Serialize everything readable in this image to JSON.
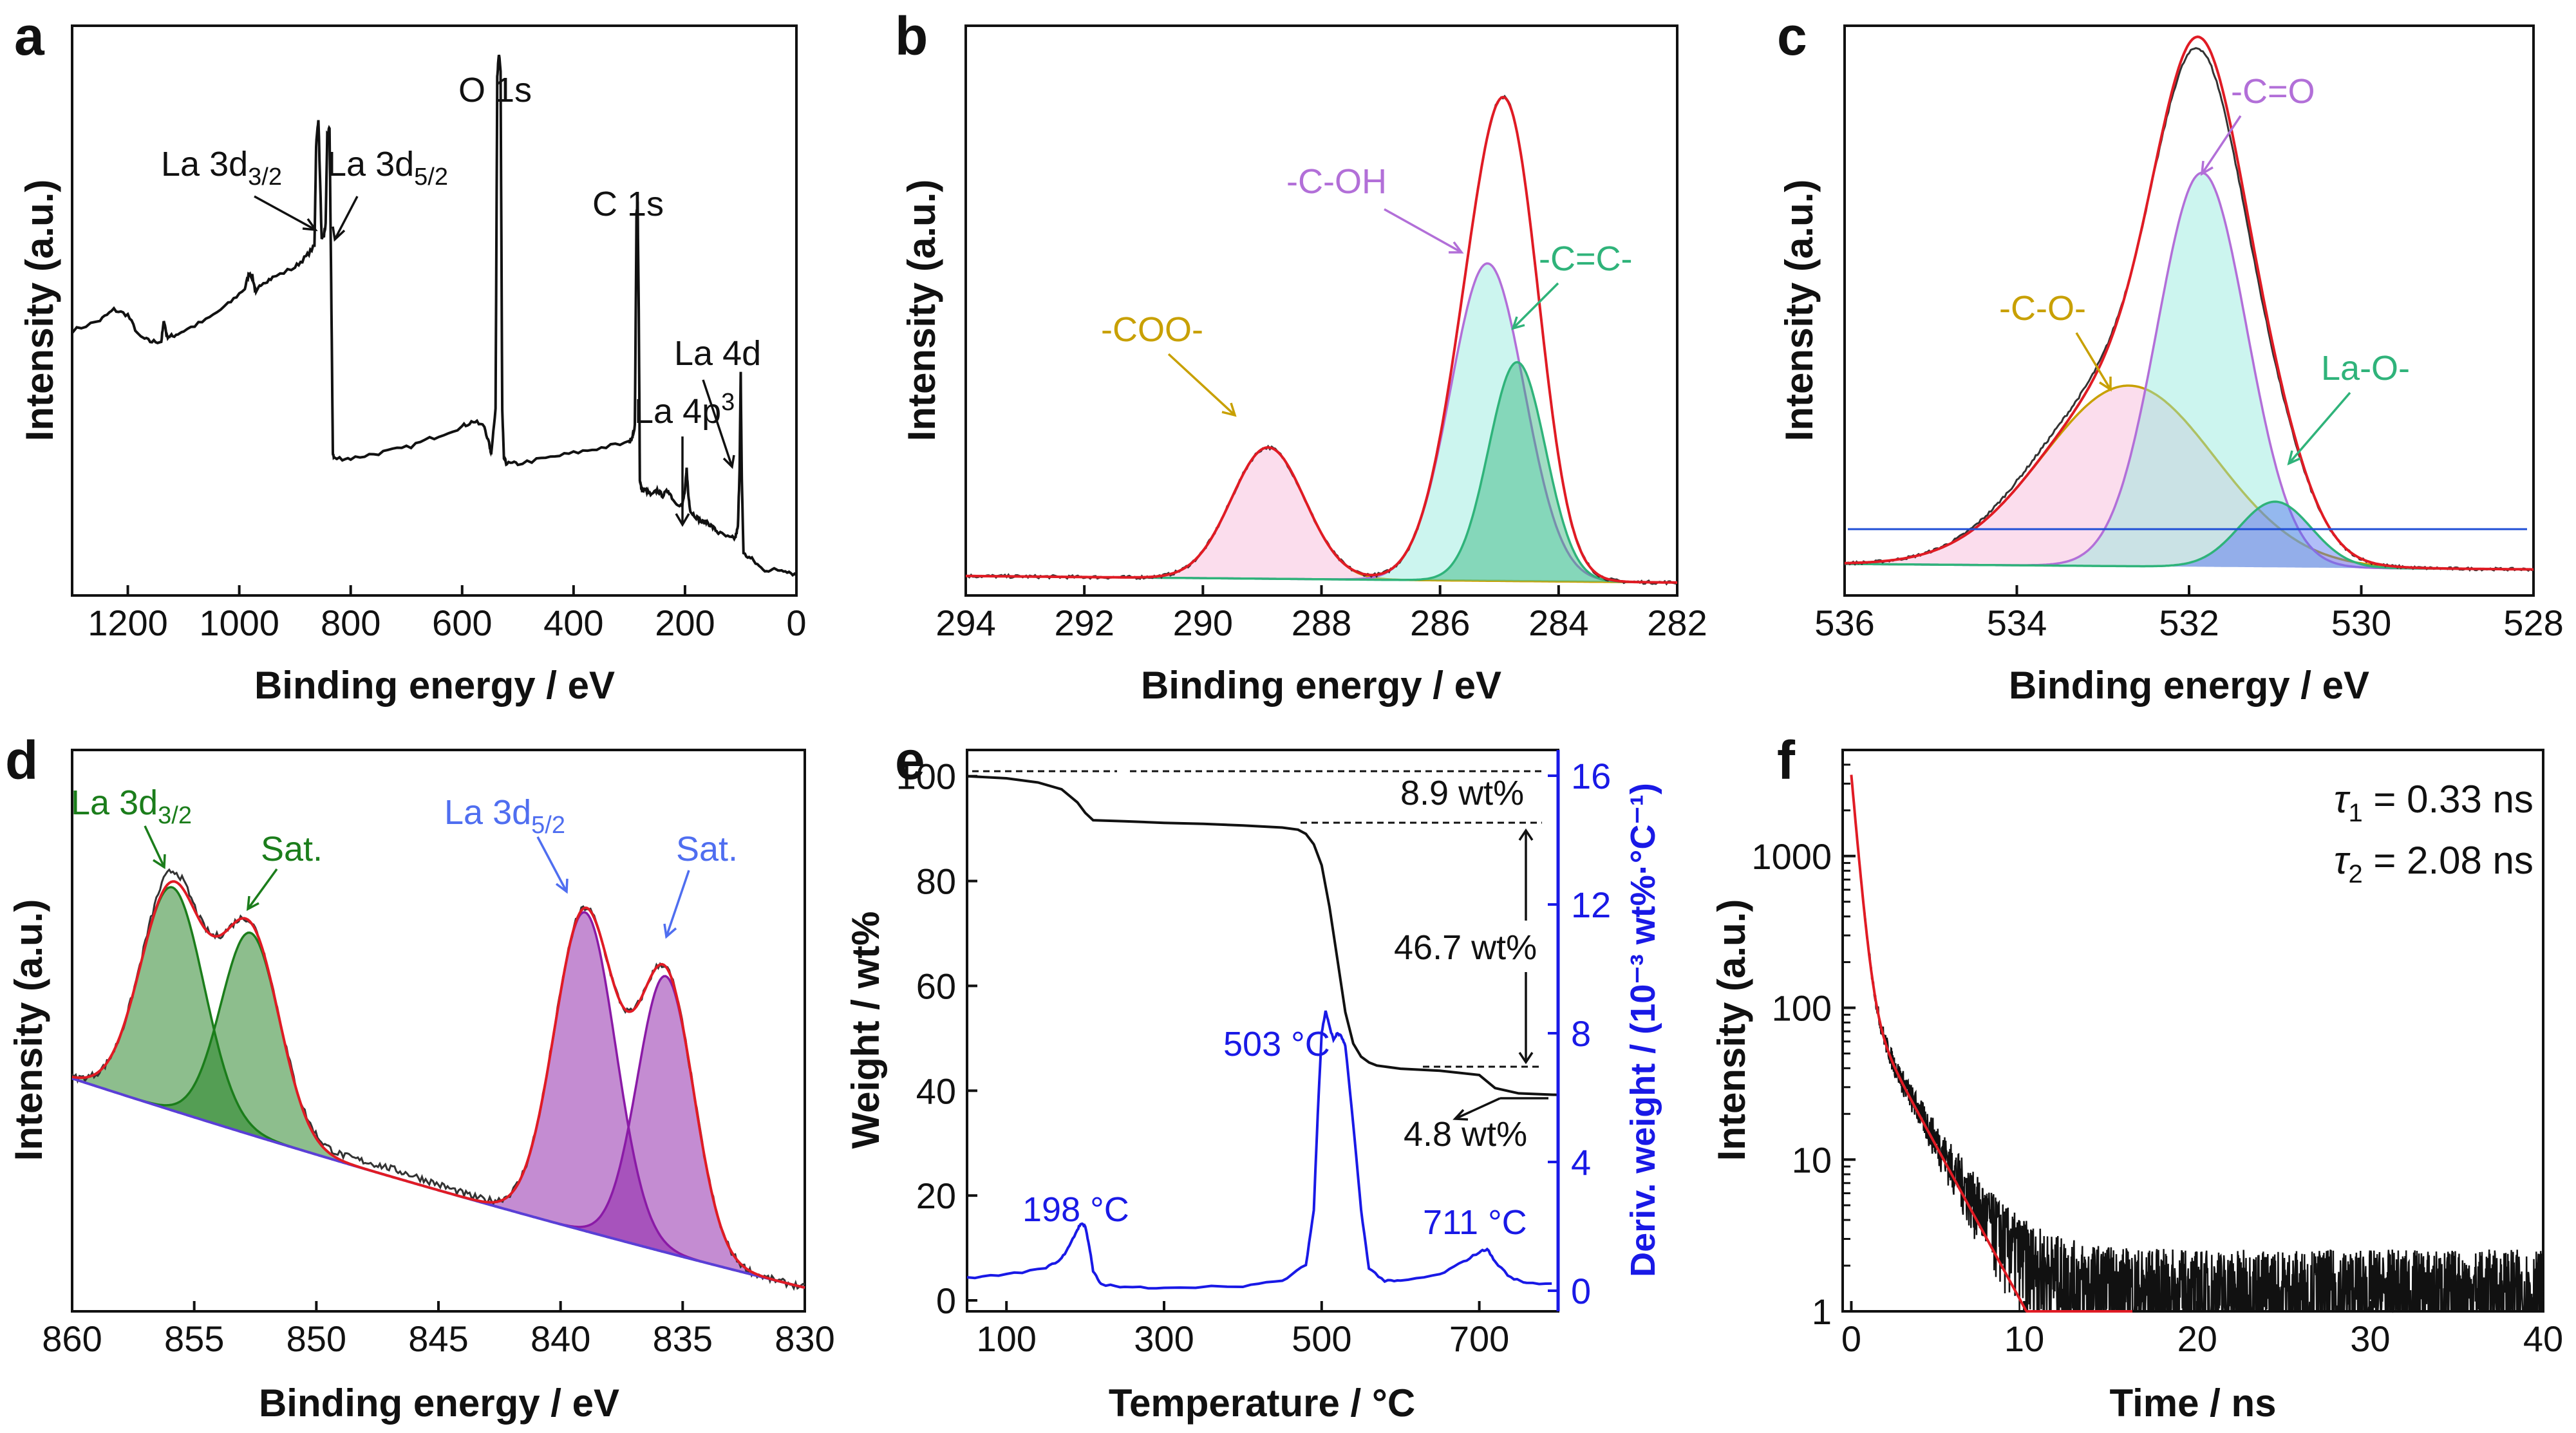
{
  "colors": {
    "black": "#111111",
    "red": "#e01b24",
    "gold": "#c8a000",
    "violet": "#b26fd8",
    "teal": "#2fb37a",
    "pink": "#f7b4d8",
    "cyan": "#8ee8dc",
    "green": "#1b7d1b",
    "purple": "#8a1aa6",
    "blue": "#1919e6",
    "lblue": "#4f6ef0"
  },
  "chart_data": [
    {
      "panel": "a",
      "type": "line",
      "xlabel": "Binding energy / eV",
      "ylabel": "Intensity (a.u.)",
      "xlim": [
        1300,
        0
      ],
      "ylim": [
        0,
        100
      ],
      "xreversed": true,
      "xticks": [
        "1200",
        "1000",
        "800",
        "600",
        "400",
        "200",
        "0"
      ],
      "series": [
        {
          "x": [
            1300,
            1250,
            1225,
            1200,
            1180,
            1160,
            1140,
            1135,
            1130,
            1120,
            1100,
            1060,
            1020,
            990,
            982,
            976,
            970,
            960,
            940,
            900,
            880,
            865,
            862,
            858,
            852,
            848,
            845,
            842,
            838,
            835,
            832,
            830,
            800,
            750,
            700,
            650,
            600,
            580,
            560,
            550,
            548,
            540,
            537,
            534,
            531,
            528,
            525,
            520,
            500,
            450,
            400,
            350,
            300,
            295,
            290,
            287,
            285,
            283,
            281,
            278,
            270,
            260,
            250,
            240,
            230,
            220,
            205,
            200,
            197,
            194,
            190,
            180,
            170,
            160,
            150,
            140,
            120,
            110,
            105,
            102,
            100,
            98,
            95,
            80,
            60,
            40,
            20,
            0
          ],
          "y": [
            48,
            50,
            52,
            51,
            47,
            46,
            46,
            50,
            47,
            47,
            48,
            50,
            53,
            56,
            59,
            58,
            55,
            57,
            58,
            60,
            62,
            64,
            83,
            88,
            65,
            66,
            68,
            85,
            86,
            57,
            25,
            24,
            24,
            25,
            26,
            28,
            30,
            31,
            30,
            26,
            25,
            33,
            96,
            100,
            97,
            33,
            24,
            23,
            23,
            24,
            25,
            26,
            27,
            28,
            30,
            70,
            72,
            52,
            20,
            18,
            18,
            17,
            18,
            17,
            18,
            16,
            15,
            18,
            22,
            17,
            14,
            13,
            12,
            12,
            11,
            10,
            9,
            9,
            11,
            22,
            40,
            20,
            6,
            5,
            3,
            3,
            3,
            2
          ]
        }
      ],
      "annotations": [
        "O 1s",
        "C 1s",
        "La 4d",
        "La 4p",
        "3"
      ],
      "label_la32": {
        "base": "La 3d",
        "sub": "3/2"
      },
      "label_la52": {
        "base": "La 3d",
        "sub": "5/2"
      }
    },
    {
      "panel": "b",
      "type": "line",
      "xlabel": "Binding energy / eV",
      "ylabel": "Intensity (a.u.)",
      "xlim": [
        294,
        282
      ],
      "ylim": [
        0,
        100
      ],
      "xreversed": true,
      "xticks": [
        "294",
        "292",
        "290",
        "288",
        "286",
        "284",
        "282"
      ],
      "components": [
        {
          "name": "-COO-",
          "center": 288.9,
          "height": 24,
          "width": 0.62,
          "color": "gold",
          "fill": "pink"
        },
        {
          "name": "-C-OH",
          "center": 285.2,
          "height": 58,
          "width": 0.62,
          "color": "violet",
          "fill": "cyan"
        },
        {
          "name": "-C=C-",
          "center": 284.7,
          "height": 40,
          "width": 0.48,
          "color": "teal",
          "fill": "teal"
        }
      ],
      "annotations": [
        "-COO-",
        "-C-OH",
        "-C=C-"
      ]
    },
    {
      "panel": "c",
      "type": "line",
      "xlabel": "Binding energy / eV",
      "ylabel": "Intensity (a.u.)",
      "xlim": [
        536,
        528
      ],
      "ylim": [
        0,
        100
      ],
      "xreversed": true,
      "xticks": [
        "536",
        "534",
        "532",
        "530",
        "528"
      ],
      "components": [
        {
          "name": "-C-O-",
          "center": 532.7,
          "height": 33,
          "width": 1.0,
          "color": "gold",
          "fill": "pink"
        },
        {
          "name": "-C=O",
          "center": 531.85,
          "height": 72,
          "width": 0.52,
          "color": "violet",
          "fill": "cyan"
        },
        {
          "name": "La-O-",
          "center": 531.0,
          "height": 12,
          "width": 0.42,
          "color": "teal",
          "fill": "lblue"
        }
      ],
      "annotations": [
        "-C-O-",
        "-C=O",
        "La-O-"
      ]
    },
    {
      "panel": "d",
      "type": "line",
      "xlabel": "Binding energy / eV",
      "ylabel": "Intensity (a.u.)",
      "xlim": [
        860,
        830
      ],
      "ylim": [
        0,
        100
      ],
      "xreversed": true,
      "xticks": [
        "860",
        "855",
        "850",
        "845",
        "840",
        "835",
        "830"
      ],
      "components": [
        {
          "name": "La 3d3/2",
          "center": 855.9,
          "height": 42,
          "width": 1.3,
          "color": "green",
          "fill": "green"
        },
        {
          "name": "Sat. 3/2",
          "center": 852.7,
          "height": 38,
          "width": 1.2,
          "color": "green",
          "fill": "green"
        },
        {
          "name": "La 3d5/2",
          "center": 839.0,
          "height": 60,
          "width": 1.25,
          "color": "purple",
          "fill": "purple"
        },
        {
          "name": "Sat. 5/2",
          "center": 835.7,
          "height": 52,
          "width": 1.15,
          "color": "purple",
          "fill": "purple"
        }
      ],
      "label_la32": {
        "base": "La 3d",
        "sub": "3/2"
      },
      "label_la52": {
        "base": "La 3d",
        "sub": "5/2"
      },
      "sat": "Sat."
    },
    {
      "panel": "e",
      "type": "line",
      "xlabel": "Temperature / °C",
      "ylabel": "Weight / wt%",
      "y2label": "Deriv. weight / (10⁻³ wt%·°C⁻¹)",
      "xlim": [
        50,
        800
      ],
      "ylim": [
        0,
        105
      ],
      "y2lim": [
        0,
        16.8
      ],
      "xticks": [
        "100",
        "300",
        "500",
        "700"
      ],
      "yticks": [
        "0",
        "20",
        "40",
        "60",
        "80",
        "100"
      ],
      "y2ticks": [
        "0",
        "4",
        "8",
        "12",
        "16"
      ],
      "series": [
        {
          "name": "Weight",
          "x": [
            50,
            100,
            140,
            170,
            190,
            200,
            210,
            250,
            300,
            350,
            400,
            450,
            470,
            480,
            490,
            500,
            510,
            520,
            530,
            540,
            550,
            560,
            570,
            600,
            650,
            700,
            720,
            750,
            800
          ],
          "y": [
            100,
            99.6,
            98.8,
            97.5,
            95,
            93,
            91.6,
            91.4,
            91.1,
            90.9,
            90.6,
            90.2,
            89.8,
            89.0,
            87.0,
            83.0,
            75.0,
            65.0,
            55.0,
            49.0,
            46.5,
            45.4,
            44.8,
            44.2,
            43.8,
            43.0,
            40.5,
            39.5,
            39.2
          ]
        },
        {
          "name": "Deriv. weight",
          "x": [
            50,
            100,
            150,
            170,
            180,
            190,
            195,
            200,
            205,
            210,
            220,
            250,
            300,
            400,
            450,
            480,
            490,
            495,
            500,
            505,
            510,
            515,
            520,
            525,
            530,
            540,
            550,
            560,
            580,
            600,
            650,
            680,
            700,
            710,
            720,
            740,
            760,
            800
          ],
          "y": [
            0.4,
            0.5,
            0.7,
            1.0,
            1.4,
            1.9,
            2.1,
            2.0,
            1.4,
            0.6,
            0.2,
            0.1,
            0.1,
            0.15,
            0.3,
            0.8,
            2.5,
            5.5,
            8.0,
            8.7,
            8.2,
            7.8,
            8.0,
            7.9,
            7.6,
            5.2,
            2.5,
            0.7,
            0.3,
            0.3,
            0.5,
            0.9,
            1.2,
            1.3,
            0.9,
            0.4,
            0.25,
            0.2
          ]
        }
      ],
      "annotations": [
        "8.9 wt%",
        "46.7 wt%",
        "4.8 wt%",
        "198 °C",
        "503 °C",
        "711 °C"
      ]
    },
    {
      "panel": "f",
      "type": "line",
      "xlabel": "Time / ns",
      "ylabel": "Intensity (a.u.)",
      "xlim": [
        -0.5,
        40
      ],
      "ylim": [
        1,
        5000
      ],
      "yscale": "log",
      "xticks": [
        "0",
        "10",
        "20",
        "30",
        "40"
      ],
      "yticks": [
        "1",
        "10",
        "100",
        "1000"
      ],
      "decay": {
        "A1": 3300,
        "tau1": 0.33,
        "A2": 130,
        "tau2": 2.08,
        "noise_floor": 1.3
      },
      "tau1_label": "0.33 ns",
      "tau2_label": "2.08 ns"
    }
  ]
}
